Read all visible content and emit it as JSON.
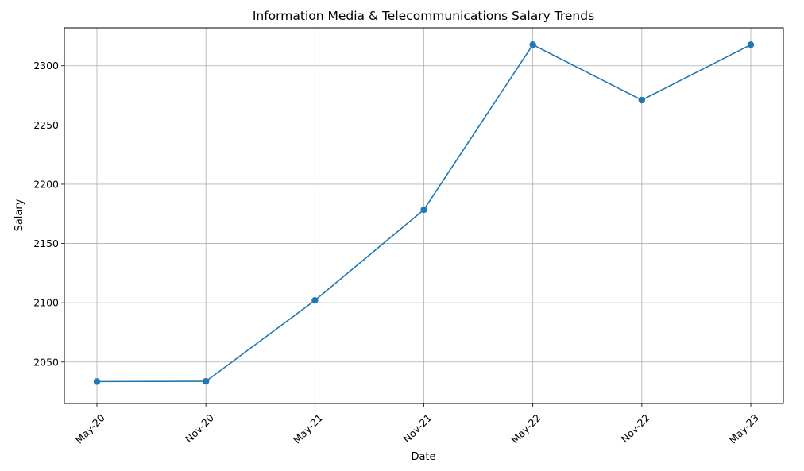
{
  "chart_data": {
    "type": "line",
    "title": "Information Media & Telecommunications Salary Trends",
    "xlabel": "Date",
    "ylabel": "Salary",
    "x": [
      "May-20",
      "Nov-20",
      "May-21",
      "Nov-21",
      "May-22",
      "Nov-22",
      "May-23"
    ],
    "series": [
      {
        "values": [
          2033.5,
          2033.7,
          2102,
          2178.5,
          2317.7,
          2271,
          2317.7
        ],
        "color": "#1f77b4",
        "marker": "circle"
      }
    ],
    "ylim": [
      2015,
      2332
    ],
    "yticks": [
      2050,
      2100,
      2150,
      2200,
      2250,
      2300
    ],
    "grid": true,
    "xtick_rotation": 45
  }
}
